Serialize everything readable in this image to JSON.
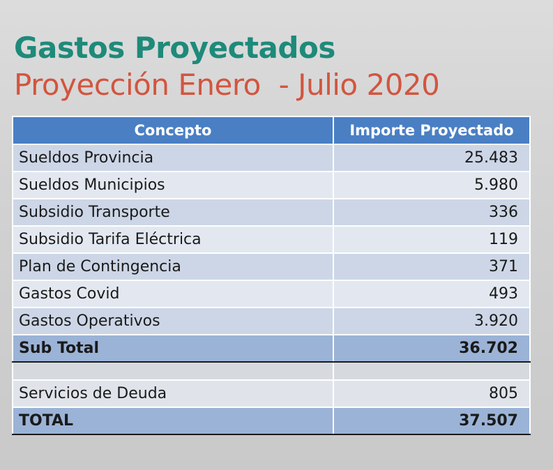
{
  "header": {
    "title": "Gastos Proyectados",
    "subtitle": "Proyección Enero  - Julio 2020"
  },
  "table": {
    "columns": [
      "Concepto",
      "Importe Proyectado"
    ],
    "rows": [
      {
        "concept": "Sueldos Provincia",
        "amount": "25.483"
      },
      {
        "concept": "Sueldos Municipios",
        "amount": "5.980"
      },
      {
        "concept": "Subsidio Transporte",
        "amount": "336"
      },
      {
        "concept": "Subsidio Tarifa Eléctrica",
        "amount": "119"
      },
      {
        "concept": "Plan de Contingencia",
        "amount": "371"
      },
      {
        "concept": "Gastos Covid",
        "amount": "493"
      },
      {
        "concept": "Gastos Operativos",
        "amount": "3.920"
      }
    ],
    "subtotal": {
      "label": "Sub Total",
      "amount": "36.702"
    },
    "debt": {
      "concept": "Servicios de Deuda",
      "amount": "805"
    },
    "total": {
      "label": "TOTAL",
      "amount": "37.507"
    }
  },
  "colors": {
    "title": "#1e8a7a",
    "subtitle": "#d2553f",
    "header_bg": "#4a7fc4",
    "subtotal_bg": "#9bb3d6"
  }
}
